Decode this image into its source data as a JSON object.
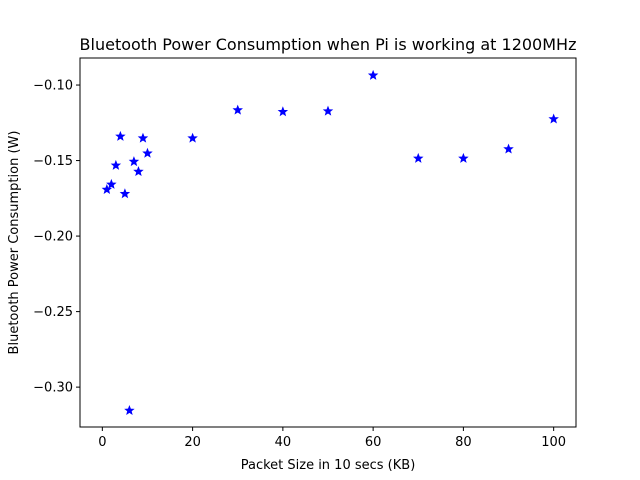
{
  "chart_data": {
    "type": "scatter",
    "title": "Bluetooth Power Consumption when Pi is working at 1200MHz",
    "xlabel": "Packet Size in 10 secs (KB)",
    "ylabel": "Bluetooth Power Consumption (W)",
    "xlim": [
      -4.95,
      104.95
    ],
    "ylim": [
      -0.3264,
      -0.0821
    ],
    "xticks": [
      0,
      20,
      40,
      60,
      80,
      100
    ],
    "yticks": [
      -0.3,
      -0.25,
      -0.2,
      -0.15,
      -0.1
    ],
    "xtick_labels": [
      "0",
      "20",
      "40",
      "60",
      "80",
      "100"
    ],
    "ytick_labels": [
      "−0.30",
      "−0.25",
      "−0.20",
      "−0.15",
      "−0.10"
    ],
    "grid": false,
    "marker": "star",
    "color": "#0000ff",
    "series": [
      {
        "x": [
          1,
          2,
          3,
          4,
          5,
          6,
          7,
          8,
          9,
          10,
          20,
          30,
          40,
          50,
          60,
          70,
          80,
          90,
          100
        ],
        "y": [
          -0.1692,
          -0.1658,
          -0.1532,
          -0.134,
          -0.172,
          -0.3155,
          -0.1507,
          -0.1573,
          -0.1352,
          -0.1452,
          -0.1352,
          -0.1166,
          -0.1177,
          -0.1173,
          -0.0936,
          -0.1486,
          -0.1486,
          -0.1424,
          -0.1225
        ]
      }
    ]
  }
}
